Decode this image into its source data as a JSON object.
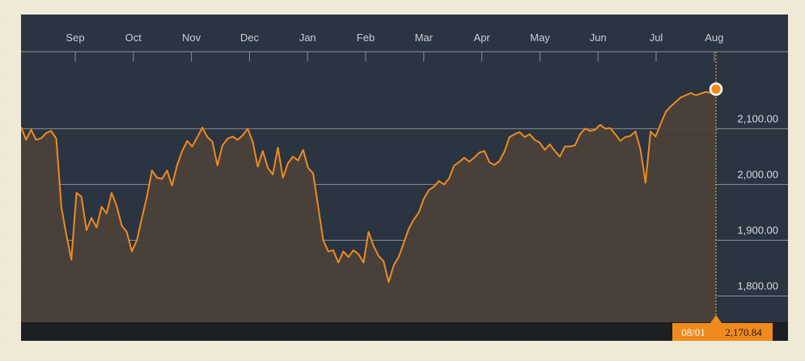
{
  "chart_data": {
    "type": "line",
    "x_axis": {
      "labels": [
        "Sep",
        "Oct",
        "Nov",
        "Dec",
        "Jan",
        "Feb",
        "Mar",
        "Apr",
        "May",
        "Jun",
        "Jul",
        "Aug"
      ]
    },
    "y_axis": {
      "ticks": [
        1800,
        1900,
        2000,
        2100
      ],
      "tick_labels": [
        "1,800.00",
        "1,900.00",
        "2,000.00",
        "2,100.00"
      ],
      "range": [
        1753,
        2238
      ],
      "position": "right"
    },
    "grid": true,
    "colors": {
      "line": "#ee8a22",
      "fill": "#4b4239",
      "background": "#2b3441",
      "grid": "#8a8f93",
      "highlight": "#f08a1c"
    },
    "series": [
      {
        "values": [
          2103,
          2080,
          2098,
          2080,
          2083,
          2092,
          2096,
          2082,
          1960,
          1910,
          1865,
          1985,
          1978,
          1918,
          1940,
          1923,
          1960,
          1948,
          1985,
          1961,
          1926,
          1915,
          1880,
          1900,
          1940,
          1978,
          2025,
          2012,
          2010,
          2025,
          1998,
          2035,
          2060,
          2078,
          2068,
          2085,
          2102,
          2085,
          2077,
          2034,
          2070,
          2082,
          2086,
          2080,
          2088,
          2100,
          2077,
          2032,
          2060,
          2030,
          2018,
          2066,
          2012,
          2038,
          2050,
          2043,
          2062,
          2030,
          2020,
          1960,
          1900,
          1880,
          1882,
          1860,
          1880,
          1870,
          1882,
          1875,
          1860,
          1915,
          1890,
          1872,
          1862,
          1825,
          1855,
          1870,
          1895,
          1921,
          1937,
          1950,
          1975,
          1990,
          1996,
          2006,
          2000,
          2011,
          2034,
          2040,
          2048,
          2041,
          2048,
          2057,
          2060,
          2040,
          2035,
          2042,
          2059,
          2085,
          2090,
          2094,
          2085,
          2090,
          2080,
          2075,
          2062,
          2072,
          2060,
          2050,
          2068,
          2068,
          2070,
          2090,
          2100,
          2096,
          2098,
          2107,
          2100,
          2101,
          2090,
          2078,
          2085,
          2087,
          2095,
          2063,
          2003,
          2095,
          2086,
          2108,
          2130,
          2140,
          2148,
          2156,
          2160,
          2164,
          2160,
          2163,
          2166,
          2164,
          2170.84
        ]
      }
    ],
    "highlight": {
      "date": "08/01",
      "value": "2,170.84"
    }
  }
}
